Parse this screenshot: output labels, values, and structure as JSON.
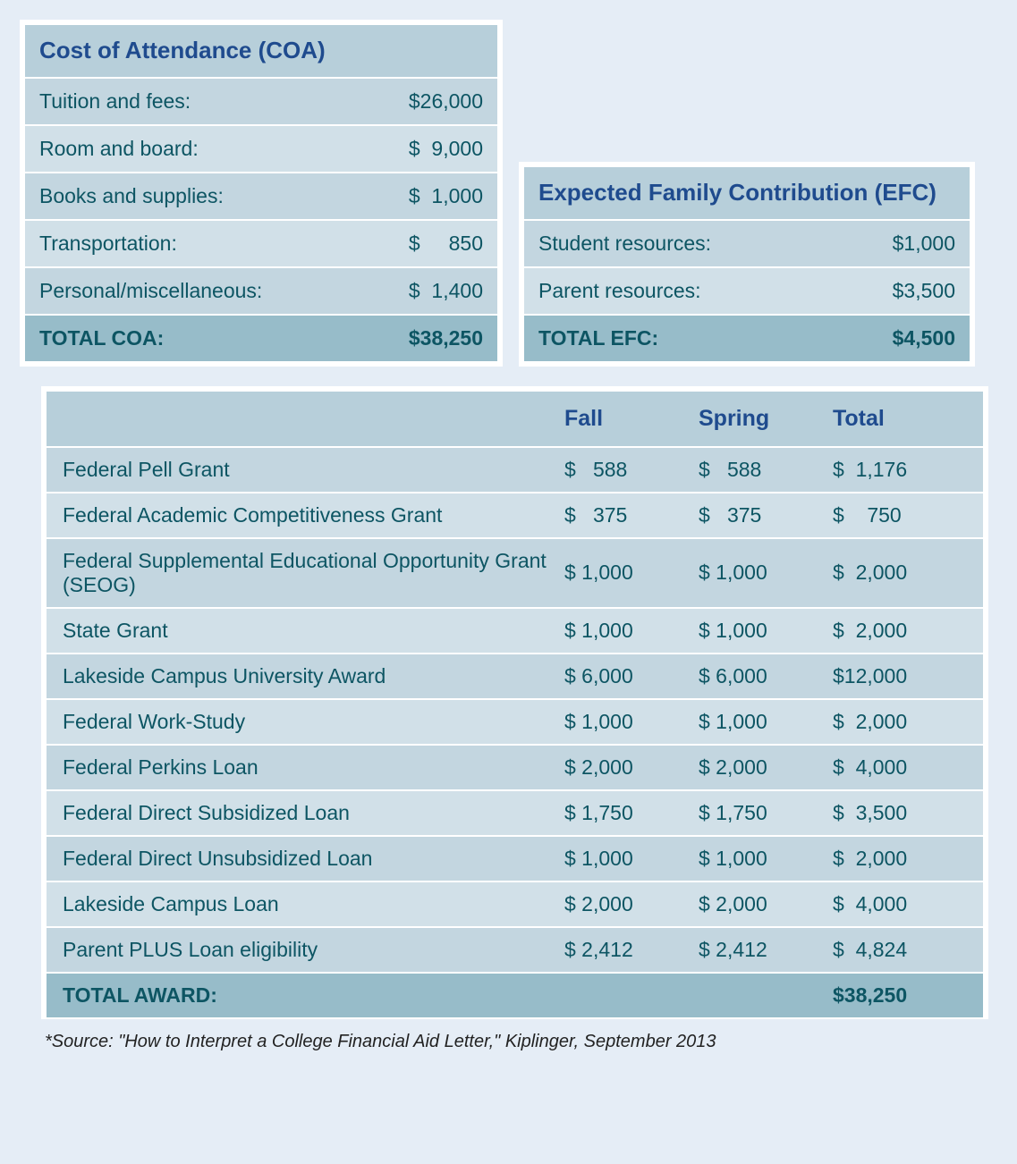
{
  "coa": {
    "title": "Cost of Attendance (COA)",
    "rows": [
      {
        "label": "Tuition and fees:",
        "amount": "$26,000"
      },
      {
        "label": "Room and board:",
        "amount": "$  9,000"
      },
      {
        "label": "Books and supplies:",
        "amount": "$  1,000"
      },
      {
        "label": "Transportation:",
        "amount": "$     850"
      },
      {
        "label": "Personal/miscellaneous:",
        "amount": "$  1,400"
      }
    ],
    "total_label": "TOTAL COA:",
    "total_amount": "$38,250"
  },
  "efc": {
    "title": "Expected Family Contribution (EFC)",
    "rows": [
      {
        "label": "Student resources:",
        "amount": "$1,000"
      },
      {
        "label": "Parent resources:",
        "amount": "$3,500"
      }
    ],
    "total_label": "TOTAL EFC:",
    "total_amount": "$4,500"
  },
  "award": {
    "headers": {
      "fall": "Fall",
      "spring": "Spring",
      "total": "Total"
    },
    "rows": [
      {
        "label": "Federal Pell Grant",
        "fall": "$   588",
        "spring": "$   588",
        "total": "$  1,176"
      },
      {
        "label": "Federal Academic Competitiveness Grant",
        "fall": "$   375",
        "spring": "$   375",
        "total": "$    750"
      },
      {
        "label": "Federal Supplemental Educational Opportunity Grant (SEOG)",
        "fall": "$ 1,000",
        "spring": "$ 1,000",
        "total": "$  2,000"
      },
      {
        "label": "State Grant",
        "fall": "$ 1,000",
        "spring": "$ 1,000",
        "total": "$  2,000"
      },
      {
        "label": "Lakeside Campus University Award",
        "fall": "$ 6,000",
        "spring": "$ 6,000",
        "total": "$12,000"
      },
      {
        "label": "Federal Work-Study",
        "fall": "$ 1,000",
        "spring": "$ 1,000",
        "total": "$  2,000"
      },
      {
        "label": "Federal Perkins Loan",
        "fall": "$ 2,000",
        "spring": "$ 2,000",
        "total": "$  4,000"
      },
      {
        "label": "Federal Direct Subsidized Loan",
        "fall": "$ 1,750",
        "spring": "$ 1,750",
        "total": "$  3,500"
      },
      {
        "label": "Federal Direct Unsubsidized Loan",
        "fall": "$ 1,000",
        "spring": "$ 1,000",
        "total": "$  2,000"
      },
      {
        "label": "Lakeside Campus Loan",
        "fall": "$ 2,000",
        "spring": "$ 2,000",
        "total": "$  4,000"
      },
      {
        "label": "Parent PLUS Loan eligibility",
        "fall": "$ 2,412",
        "spring": "$ 2,412",
        "total": "$  4,824"
      }
    ],
    "total_label": "TOTAL AWARD:",
    "total_amount": "$38,250"
  },
  "source": "*Source: \"How to Interpret a College Financial Aid Letter,\" Kiplinger, September 2013",
  "colors": {
    "page_bg": "#e5edf6",
    "header_bg": "#b7cfda",
    "header_text": "#1f4b8e",
    "row_even": "#d1e0e8",
    "row_odd": "#c3d6e0",
    "total_bg": "#97bcc9",
    "body_text": "#0d5563"
  }
}
